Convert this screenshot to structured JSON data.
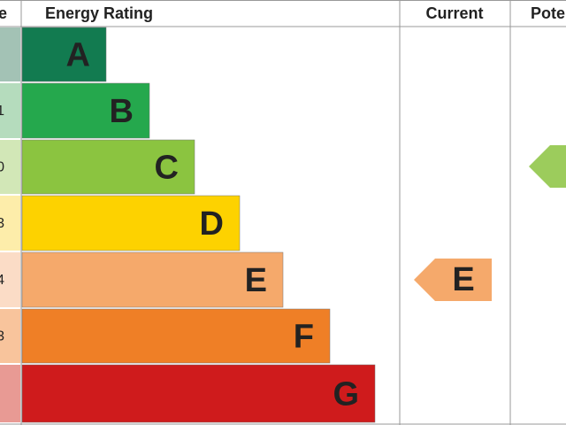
{
  "header": {
    "score": "e",
    "rating": "Energy Rating",
    "current": "Current",
    "potential": "Pote"
  },
  "bands": [
    {
      "letter": "A",
      "score": null,
      "color": "#127b50",
      "light": "#a3c2b5"
    },
    {
      "letter": "B",
      "score": "1",
      "color": "#25a84d",
      "light": "#b5dcbd"
    },
    {
      "letter": "C",
      "score": "0",
      "color": "#8bc440",
      "light": "#d2e7b7"
    },
    {
      "letter": "D",
      "score": "3",
      "color": "#fdd200",
      "light": "#fdedaa"
    },
    {
      "letter": "E",
      "score": "4",
      "color": "#f5a96b",
      "light": "#fbdcc6"
    },
    {
      "letter": "F",
      "score": "3",
      "color": "#ef7f26",
      "light": "#f8c49c"
    },
    {
      "letter": "G",
      "score": null,
      "color": "#cf1b1c",
      "light": "#e89a94"
    }
  ],
  "current": {
    "letter": "E",
    "color": "#f5a96b"
  },
  "potential": {
    "color": "#9ccc5c"
  }
}
